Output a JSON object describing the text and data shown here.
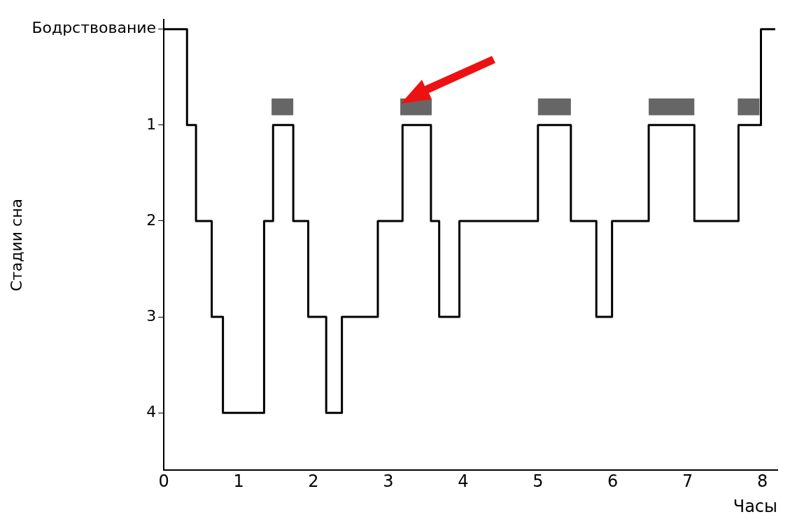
{
  "chart_data": {
    "type": "step",
    "xlabel": "Часы",
    "ylabel": "Стадии сна",
    "x": [
      0,
      0.31,
      0.43,
      0.64,
      0.79,
      1.34,
      1.46,
      1.73,
      1.93,
      2.17,
      2.38,
      2.86,
      3.19,
      3.57,
      3.68,
      3.95,
      5.0,
      5.44,
      5.78,
      5.99,
      6.48,
      7.09,
      7.68,
      7.98,
      8.17
    ],
    "series": [
      {
        "color": "#000000",
        "values": [
          0,
          1,
          2,
          3,
          4,
          2,
          1,
          2,
          3,
          4,
          3,
          2,
          1,
          2,
          3,
          2,
          1,
          2,
          3,
          2,
          1,
          2,
          1,
          0,
          0
        ]
      },
      {
        "type": "line",
        "color": "#666666",
        "x": [
          1.44,
          1.73
        ],
        "values": [
          0.81,
          0.81
        ]
      },
      {
        "type": "line",
        "color": "#666666",
        "x": [
          3.16,
          3.58
        ],
        "values": [
          0.81,
          0.81
        ]
      },
      {
        "type": "line",
        "color": "#666666",
        "x": [
          5.0,
          5.44
        ],
        "values": [
          0.81,
          0.81
        ]
      },
      {
        "type": "line",
        "color": "#666666",
        "x": [
          6.48,
          7.09
        ],
        "values": [
          0.81,
          0.81
        ]
      },
      {
        "type": "line",
        "color": "#666666",
        "x": [
          7.67,
          7.96
        ],
        "values": [
          0.81,
          0.81
        ]
      }
    ],
    "xlim": [
      0,
      8.2
    ],
    "xticks": [
      0,
      1,
      2,
      3,
      4,
      5,
      6,
      7,
      8
    ],
    "ylim": [
      4.6,
      -0.1
    ],
    "yticks": [
      {
        "value": 0,
        "label": "Бодрствование"
      },
      1,
      2,
      3,
      4
    ],
    "grid": false,
    "legend": false,
    "marker": "none",
    "line_style": "solid"
  }
}
